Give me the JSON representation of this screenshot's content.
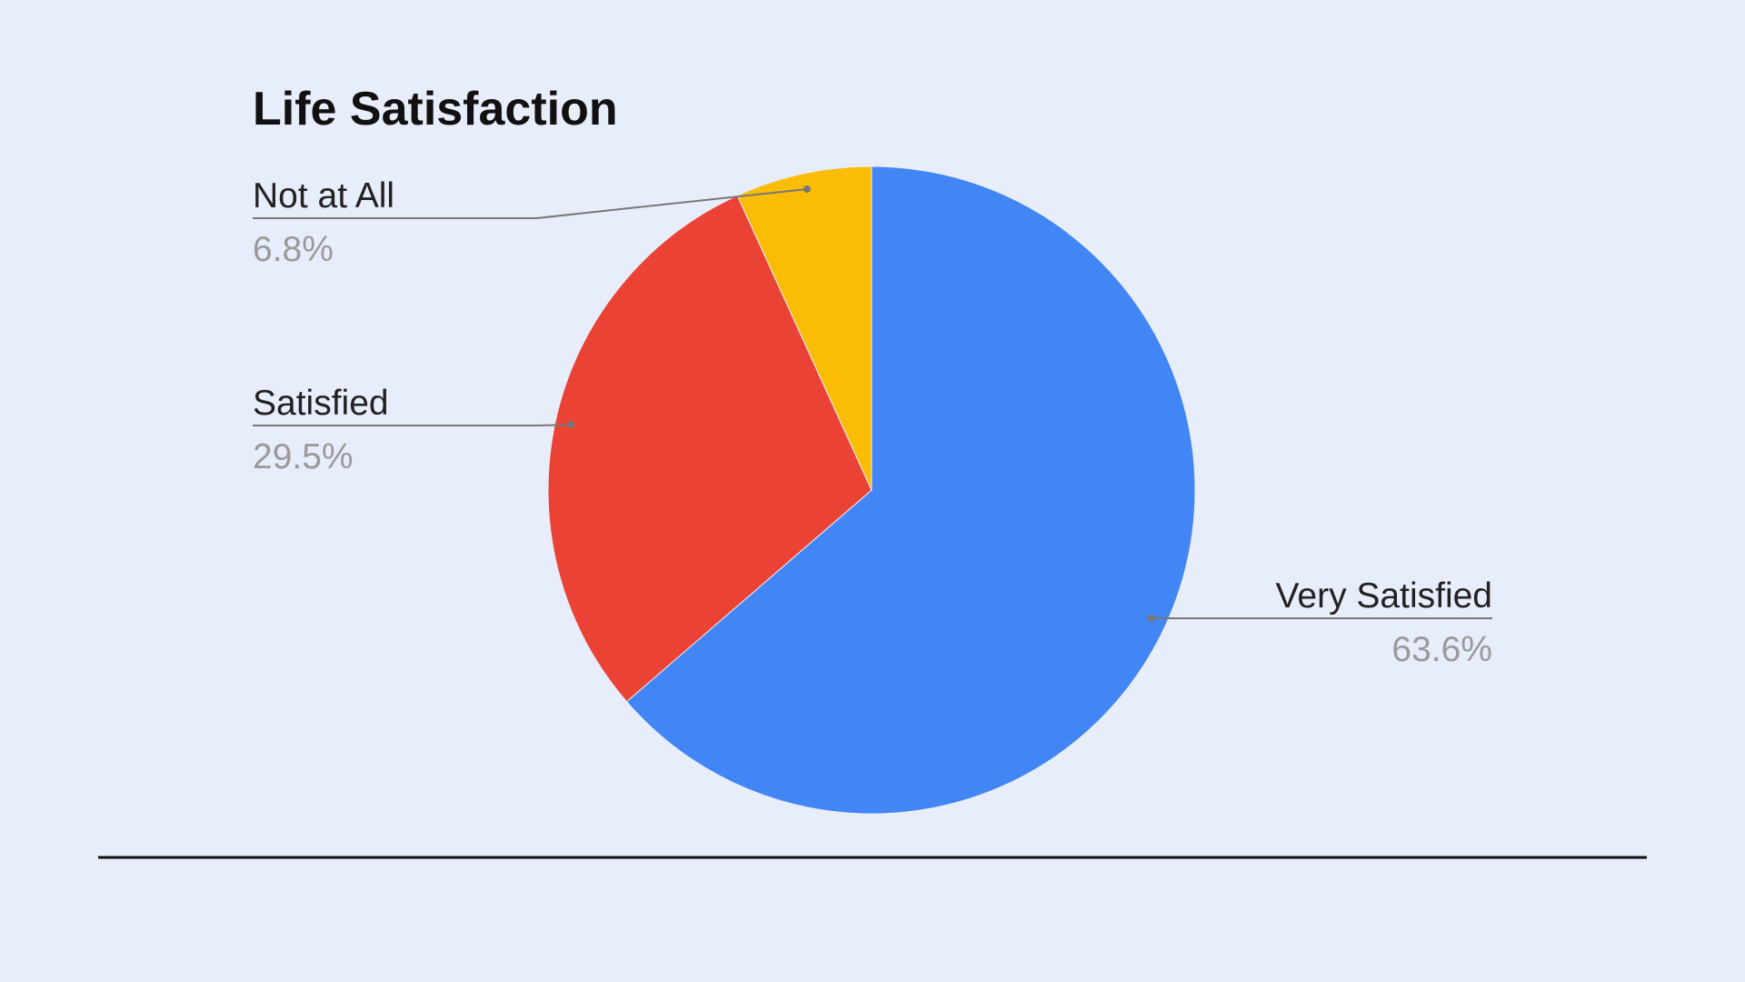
{
  "chart_data": {
    "type": "pie",
    "title": "Life Satisfaction",
    "categories": [
      "Very Satisfied",
      "Satisfied",
      "Not at All"
    ],
    "values": [
      63.6,
      29.5,
      6.8
    ],
    "value_labels": [
      "63.6%",
      "29.5%",
      "6.8%"
    ],
    "colors": [
      "#4285f4",
      "#ea4335",
      "#fbbc04"
    ]
  }
}
